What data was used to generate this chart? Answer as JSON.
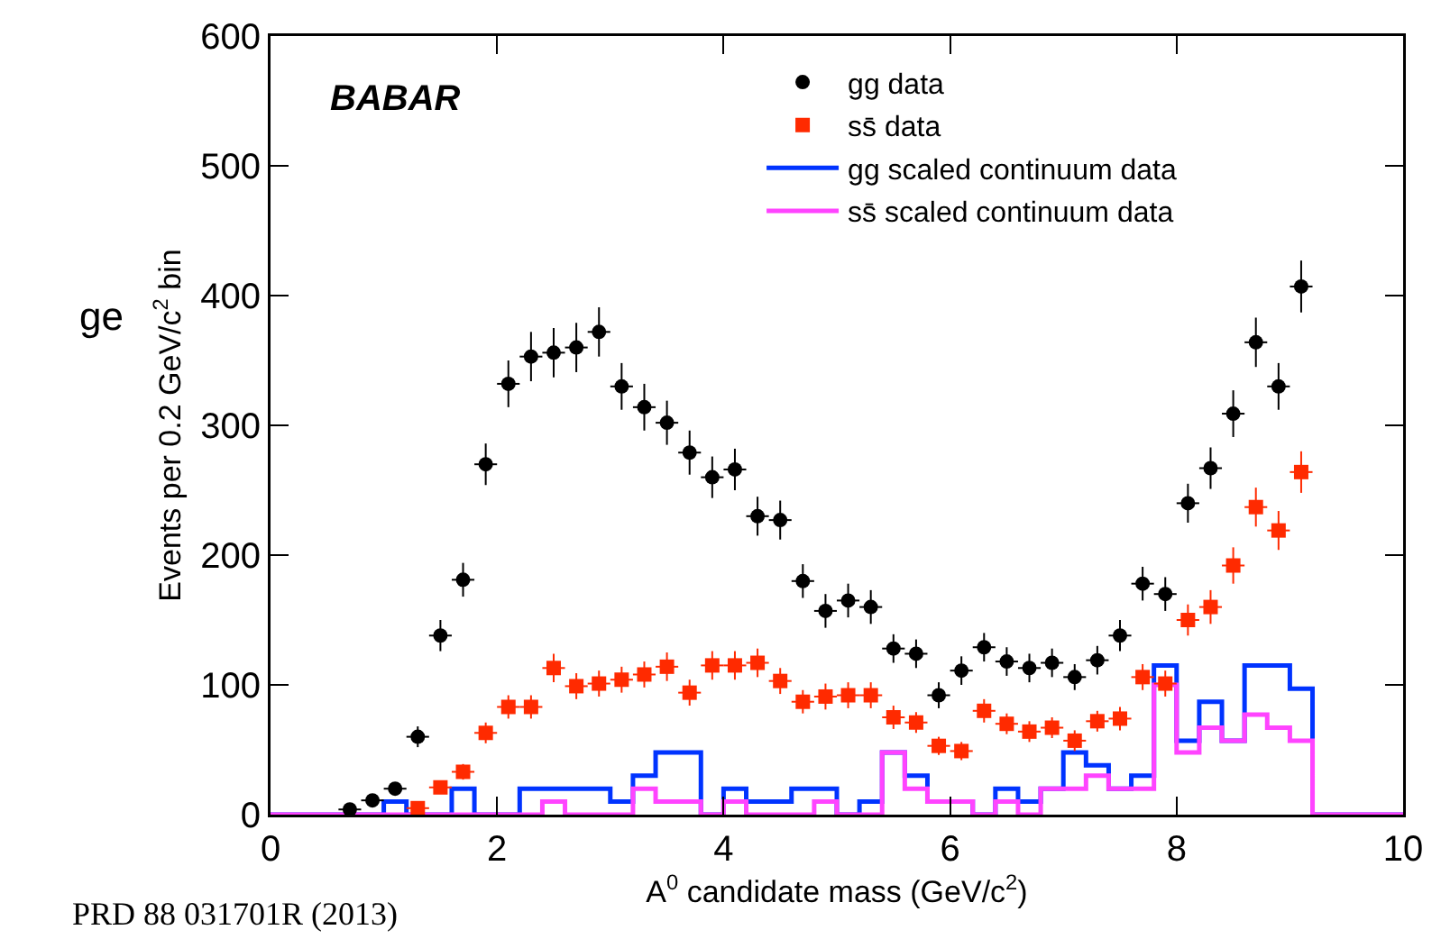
{
  "chart_data": {
    "type": "scatter",
    "xlabel": "A$^{0}$ candidate mass (GeV/c$^{2}$)",
    "ylabel": "Events per 0.2 GeV/c$^{2}$ bin",
    "xlim": [
      0,
      10
    ],
    "ylim": [
      0,
      600
    ],
    "xticks": [
      0,
      2,
      4,
      6,
      8,
      10
    ],
    "yticks": [
      0,
      100,
      200,
      300,
      400,
      500,
      600
    ],
    "grid": false,
    "legend": "top right",
    "annotations": [
      "BABAR",
      "ge",
      "PRD 88 031701R (2013)"
    ],
    "series": [
      {
        "name": "gg data",
        "marker": "circle",
        "xerrors": [
          0.1,
          0.1,
          0.1,
          0.1,
          0.1,
          0.1,
          0.1,
          0.1,
          0.1,
          0.1,
          0.1,
          0.1,
          0.1,
          0.1,
          0.1,
          0.1,
          0.1,
          0.1,
          0.1,
          0.1,
          0.1,
          0.1,
          0.1,
          0.1,
          0.1,
          0.1,
          0.1,
          0.1,
          0.1,
          0.1,
          0.1,
          0.1,
          0.1,
          0.1,
          0.1,
          0.1,
          0.1,
          0.1,
          0.1,
          0.1,
          0.1,
          0.1,
          0.1
        ],
        "color": "#000000",
        "x": [
          0.7,
          0.9,
          1.1,
          1.3,
          1.5,
          1.7,
          1.9,
          2.1,
          2.3,
          2.5,
          2.7,
          2.9,
          3.1,
          3.3,
          3.5,
          3.7,
          3.9,
          4.1,
          4.3,
          4.5,
          4.7,
          4.9,
          5.1,
          5.3,
          5.5,
          5.7,
          5.9,
          6.1,
          6.3,
          6.5,
          6.7,
          6.9,
          7.1,
          7.3,
          7.5,
          7.7,
          7.9,
          8.1,
          8.3,
          8.5,
          8.7,
          8.9,
          9.1
        ],
        "values": [
          4,
          11,
          20,
          60,
          138,
          181,
          270,
          332,
          353,
          356,
          360,
          372,
          330,
          314,
          302,
          279,
          260,
          266,
          230,
          227,
          180,
          157,
          165,
          160,
          128,
          124,
          92,
          111,
          129,
          118,
          113,
          117,
          106,
          119,
          138,
          178,
          170,
          240,
          267,
          309,
          364,
          330,
          407
        ],
        "errors": [
          2,
          3,
          4,
          8,
          12,
          13,
          16,
          18,
          19,
          19,
          19,
          19,
          18,
          18,
          17,
          17,
          16,
          16,
          15,
          15,
          13,
          13,
          13,
          13,
          11,
          11,
          10,
          11,
          11,
          11,
          11,
          11,
          10,
          11,
          12,
          13,
          13,
          15,
          16,
          18,
          19,
          18,
          20
        ]
      },
      {
        "name": "ss̄ data",
        "marker": "square",
        "xerrors": [
          0.1,
          0.1,
          0.1,
          0.1,
          0.1,
          0.1,
          0.1,
          0.1,
          0.1,
          0.1,
          0.1,
          0.1,
          0.1,
          0.1,
          0.1,
          0.1,
          0.1,
          0.1,
          0.1,
          0.1,
          0.1,
          0.1,
          0.1,
          0.1,
          0.1,
          0.1,
          0.1,
          0.1,
          0.1,
          0.1,
          0.1,
          0.1,
          0.1,
          0.1,
          0.1,
          0.1,
          0.1,
          0.1,
          0.1,
          0.1
        ],
        "color": "#ff2a00",
        "x": [
          1.3,
          1.5,
          1.7,
          1.9,
          2.1,
          2.3,
          2.5,
          2.7,
          2.9,
          3.1,
          3.3,
          3.5,
          3.7,
          3.9,
          4.1,
          4.3,
          4.5,
          4.7,
          4.9,
          5.1,
          5.3,
          5.5,
          5.7,
          5.9,
          6.1,
          6.3,
          6.5,
          6.7,
          6.9,
          7.1,
          7.3,
          7.5,
          7.7,
          7.9,
          8.1,
          8.3,
          8.5,
          8.7,
          8.9,
          9.1
        ],
        "values": [
          5,
          21,
          33,
          63,
          83,
          83,
          113,
          99,
          101,
          104,
          108,
          114,
          94,
          115,
          115,
          117,
          103,
          87,
          91,
          92,
          92,
          75,
          71,
          53,
          49,
          80,
          70,
          64,
          67,
          57,
          72,
          74,
          106,
          101,
          150,
          160,
          192,
          237,
          219,
          264
        ],
        "errors": [
          2,
          5,
          6,
          8,
          9,
          9,
          11,
          10,
          10,
          10,
          10,
          11,
          10,
          11,
          11,
          11,
          10,
          9,
          10,
          10,
          10,
          9,
          8,
          7,
          7,
          9,
          8,
          8,
          8,
          8,
          8,
          9,
          10,
          10,
          12,
          13,
          14,
          15,
          15,
          16
        ]
      },
      {
        "name": "gg scaled continuum data",
        "type": "histogram",
        "color": "#0033ff",
        "bins": [
          0,
          0.2,
          0.4,
          0.6,
          0.8,
          1,
          1.2,
          1.4,
          1.6,
          1.8,
          2,
          2.2,
          2.4,
          2.6,
          2.8,
          3,
          3.2,
          3.4,
          3.6,
          3.8,
          4,
          4.2,
          4.4,
          4.6,
          4.8,
          5,
          5.2,
          5.4,
          5.6,
          5.8,
          6,
          6.2,
          6.4,
          6.6,
          6.8,
          7,
          7.2,
          7.4,
          7.6,
          7.8,
          8,
          8.2,
          8.4,
          8.6,
          8.8,
          9,
          9.2,
          9.4,
          9.6,
          9.8,
          10
        ],
        "values": [
          0,
          0,
          0,
          0,
          0,
          10,
          0,
          0,
          20,
          0,
          0,
          20,
          20,
          20,
          20,
          10,
          30,
          48,
          48,
          0,
          20,
          10,
          10,
          20,
          20,
          0,
          10,
          48,
          30,
          10,
          10,
          0,
          20,
          10,
          20,
          48,
          38,
          20,
          30,
          115,
          57,
          87,
          57,
          115,
          115,
          97,
          0,
          0,
          0,
          0
        ]
      },
      {
        "name": "ss̄ scaled continuum data",
        "type": "histogram",
        "color": "#ff44ff",
        "bins": [
          0,
          0.2,
          0.4,
          0.6,
          0.8,
          1,
          1.2,
          1.4,
          1.6,
          1.8,
          2,
          2.2,
          2.4,
          2.6,
          2.8,
          3,
          3.2,
          3.4,
          3.6,
          3.8,
          4,
          4.2,
          4.4,
          4.6,
          4.8,
          5,
          5.2,
          5.4,
          5.6,
          5.8,
          6,
          6.2,
          6.4,
          6.6,
          6.8,
          7,
          7.2,
          7.4,
          7.6,
          7.8,
          8,
          8.2,
          8.4,
          8.6,
          8.8,
          9,
          9.2,
          9.4,
          9.6,
          9.8,
          10
        ],
        "values": [
          0,
          0,
          0,
          0,
          0,
          0,
          0,
          0,
          0,
          0,
          0,
          0,
          10,
          0,
          0,
          0,
          20,
          10,
          10,
          0,
          10,
          0,
          0,
          0,
          10,
          0,
          0,
          48,
          20,
          10,
          10,
          0,
          10,
          0,
          20,
          20,
          30,
          20,
          20,
          100,
          48,
          67,
          57,
          77,
          67,
          57,
          0,
          0,
          0,
          0
        ]
      }
    ]
  }
}
